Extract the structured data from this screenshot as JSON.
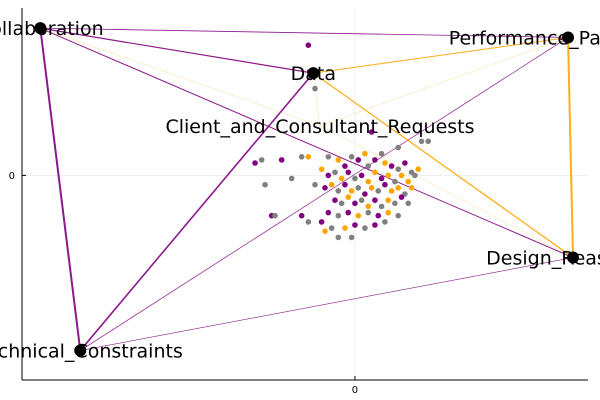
{
  "chart_data": {
    "type": "network-scatter",
    "title": "",
    "xlabel": "",
    "ylabel": "",
    "xlim": [
      -1.0,
      0.7
    ],
    "ylim": [
      -0.66,
      0.54
    ],
    "grid": true,
    "x_ticks": [
      {
        "value": 0,
        "label": "0"
      }
    ],
    "y_ticks": [
      {
        "value": 0,
        "label": "0"
      }
    ],
    "colors": {
      "purple": "#800080",
      "orange": "#ffa500",
      "gray": "#808080",
      "node": "#000000"
    },
    "nodes": [
      {
        "id": "collab",
        "label": "Collaboration",
        "x": -0.945,
        "y": 0.475
      },
      {
        "id": "perf",
        "label": "Performance_Parameters",
        "x": 0.64,
        "y": 0.445
      },
      {
        "id": "data",
        "label": "Data",
        "x": -0.125,
        "y": 0.33
      },
      {
        "id": "client",
        "label": "Client_and_Consultant_Requests",
        "x": -0.105,
        "y": 0.16
      },
      {
        "id": "design",
        "label": "Design_Reasoning",
        "x": 0.655,
        "y": -0.265
      },
      {
        "id": "tech",
        "label": "Technical_Constraints",
        "x": -0.825,
        "y": -0.565
      }
    ],
    "edges": [
      {
        "from": "collab",
        "to": "tech",
        "color": "purple",
        "width": 2.0
      },
      {
        "from": "collab",
        "to": "data",
        "color": "purple",
        "width": 1.2
      },
      {
        "from": "collab",
        "to": "design",
        "color": "purple",
        "width": 1.0
      },
      {
        "from": "collab",
        "to": "perf",
        "color": "purple",
        "width": 0.8
      },
      {
        "from": "tech",
        "to": "data",
        "color": "purple",
        "width": 1.6
      },
      {
        "from": "tech",
        "to": "design",
        "color": "purple",
        "width": 0.6
      },
      {
        "from": "tech",
        "to": "perf",
        "color": "purple",
        "width": 0.7
      },
      {
        "from": "data",
        "to": "perf",
        "color": "orange",
        "width": 1.0
      },
      {
        "from": "data",
        "to": "design",
        "color": "orange",
        "width": 1.3
      },
      {
        "from": "perf",
        "to": "design",
        "color": "orange",
        "width": 2.0
      },
      {
        "from": "collab",
        "to": "client",
        "color": "orange",
        "width": 0.4
      },
      {
        "from": "client",
        "to": "perf",
        "color": "orange",
        "width": 0.4
      },
      {
        "from": "client",
        "to": "design",
        "color": "orange",
        "width": 0.4
      },
      {
        "from": "data",
        "to": "client",
        "color": "orange",
        "width": 0.4
      }
    ],
    "points": [
      {
        "x": -0.14,
        "y": 0.42,
        "c": "purple"
      },
      {
        "x": -0.12,
        "y": 0.28,
        "c": "gray"
      },
      {
        "x": 0.05,
        "y": 0.14,
        "c": "purple"
      },
      {
        "x": 0.13,
        "y": 0.09,
        "c": "gray"
      },
      {
        "x": 0.2,
        "y": 0.11,
        "c": "gray"
      },
      {
        "x": 0.08,
        "y": 0.07,
        "c": "gray"
      },
      {
        "x": 0.22,
        "y": 0.11,
        "c": "gray"
      },
      {
        "x": -0.3,
        "y": 0.04,
        "c": "purple"
      },
      {
        "x": -0.28,
        "y": 0.05,
        "c": "gray"
      },
      {
        "x": -0.22,
        "y": 0.05,
        "c": "purple"
      },
      {
        "x": -0.16,
        "y": 0.06,
        "c": "gray"
      },
      {
        "x": -0.14,
        "y": 0.06,
        "c": "orange"
      },
      {
        "x": -0.08,
        "y": 0.06,
        "c": "gray"
      },
      {
        "x": -0.05,
        "y": 0.05,
        "c": "orange"
      },
      {
        "x": -0.03,
        "y": 0.03,
        "c": "purple"
      },
      {
        "x": -0.01,
        "y": 0.06,
        "c": "gray"
      },
      {
        "x": 0.01,
        "y": 0.05,
        "c": "purple"
      },
      {
        "x": 0.03,
        "y": 0.07,
        "c": "orange"
      },
      {
        "x": 0.04,
        "y": 0.03,
        "c": "gray"
      },
      {
        "x": 0.06,
        "y": 0.05,
        "c": "purple"
      },
      {
        "x": 0.09,
        "y": 0.04,
        "c": "orange"
      },
      {
        "x": 0.11,
        "y": 0.03,
        "c": "purple"
      },
      {
        "x": 0.13,
        "y": 0.02,
        "c": "gray"
      },
      {
        "x": 0.15,
        "y": 0.04,
        "c": "purple"
      },
      {
        "x": 0.17,
        "y": 0.01,
        "c": "gray"
      },
      {
        "x": 0.19,
        "y": 0.02,
        "c": "orange"
      },
      {
        "x": -0.1,
        "y": 0.02,
        "c": "orange"
      },
      {
        "x": -0.08,
        "y": 0.0,
        "c": "purple"
      },
      {
        "x": -0.06,
        "y": 0.01,
        "c": "gray"
      },
      {
        "x": -0.04,
        "y": -0.01,
        "c": "orange"
      },
      {
        "x": -0.02,
        "y": 0.01,
        "c": "purple"
      },
      {
        "x": 0.0,
        "y": -0.01,
        "c": "gray"
      },
      {
        "x": 0.02,
        "y": 0.0,
        "c": "purple"
      },
      {
        "x": 0.04,
        "y": -0.02,
        "c": "orange"
      },
      {
        "x": 0.06,
        "y": 0.01,
        "c": "orange"
      },
      {
        "x": 0.08,
        "y": -0.01,
        "c": "purple"
      },
      {
        "x": 0.1,
        "y": 0.0,
        "c": "orange"
      },
      {
        "x": 0.12,
        "y": -0.02,
        "c": "gray"
      },
      {
        "x": 0.14,
        "y": 0.0,
        "c": "orange"
      },
      {
        "x": 0.16,
        "y": -0.02,
        "c": "orange"
      },
      {
        "x": 0.18,
        "y": 0.0,
        "c": "gray"
      },
      {
        "x": -0.12,
        "y": -0.03,
        "c": "gray"
      },
      {
        "x": -0.09,
        "y": -0.04,
        "c": "purple"
      },
      {
        "x": -0.07,
        "y": -0.03,
        "c": "orange"
      },
      {
        "x": -0.05,
        "y": -0.05,
        "c": "gray"
      },
      {
        "x": -0.03,
        "y": -0.03,
        "c": "purple"
      },
      {
        "x": -0.01,
        "y": -0.05,
        "c": "orange"
      },
      {
        "x": 0.01,
        "y": -0.04,
        "c": "gray"
      },
      {
        "x": 0.03,
        "y": -0.06,
        "c": "purple"
      },
      {
        "x": 0.05,
        "y": -0.04,
        "c": "orange"
      },
      {
        "x": 0.07,
        "y": -0.05,
        "c": "gray"
      },
      {
        "x": 0.09,
        "y": -0.03,
        "c": "purple"
      },
      {
        "x": 0.11,
        "y": -0.05,
        "c": "orange"
      },
      {
        "x": 0.13,
        "y": -0.04,
        "c": "orange"
      },
      {
        "x": 0.15,
        "y": -0.06,
        "c": "gray"
      },
      {
        "x": 0.17,
        "y": -0.04,
        "c": "orange"
      },
      {
        "x": -0.27,
        "y": -0.03,
        "c": "gray"
      },
      {
        "x": -0.19,
        "y": -0.01,
        "c": "gray"
      },
      {
        "x": -0.06,
        "y": -0.08,
        "c": "purple"
      },
      {
        "x": -0.04,
        "y": -0.09,
        "c": "gray"
      },
      {
        "x": -0.02,
        "y": -0.07,
        "c": "orange"
      },
      {
        "x": 0.0,
        "y": -0.09,
        "c": "purple"
      },
      {
        "x": 0.02,
        "y": -0.08,
        "c": "gray"
      },
      {
        "x": 0.04,
        "y": -0.1,
        "c": "orange"
      },
      {
        "x": 0.06,
        "y": -0.08,
        "c": "purple"
      },
      {
        "x": 0.08,
        "y": -0.1,
        "c": "gray"
      },
      {
        "x": 0.1,
        "y": -0.08,
        "c": "orange"
      },
      {
        "x": 0.12,
        "y": -0.09,
        "c": "gray"
      },
      {
        "x": 0.14,
        "y": -0.07,
        "c": "purple"
      },
      {
        "x": 0.16,
        "y": -0.09,
        "c": "gray"
      },
      {
        "x": -0.08,
        "y": -0.12,
        "c": "purple"
      },
      {
        "x": -0.05,
        "y": -0.13,
        "c": "gray"
      },
      {
        "x": -0.02,
        "y": -0.12,
        "c": "purple"
      },
      {
        "x": 0.01,
        "y": -0.13,
        "c": "orange"
      },
      {
        "x": 0.04,
        "y": -0.12,
        "c": "gray"
      },
      {
        "x": 0.07,
        "y": -0.13,
        "c": "purple"
      },
      {
        "x": 0.1,
        "y": -0.12,
        "c": "orange"
      },
      {
        "x": 0.13,
        "y": -0.13,
        "c": "gray"
      },
      {
        "x": -0.25,
        "y": -0.13,
        "c": "purple"
      },
      {
        "x": -0.24,
        "y": -0.13,
        "c": "gray"
      },
      {
        "x": -0.14,
        "y": -0.15,
        "c": "gray"
      },
      {
        "x": -0.1,
        "y": -0.15,
        "c": "purple"
      },
      {
        "x": -0.07,
        "y": -0.17,
        "c": "gray"
      },
      {
        "x": -0.03,
        "y": -0.17,
        "c": "orange"
      },
      {
        "x": 0.0,
        "y": -0.16,
        "c": "purple"
      },
      {
        "x": 0.03,
        "y": -0.17,
        "c": "gray"
      },
      {
        "x": -0.09,
        "y": -0.18,
        "c": "orange"
      },
      {
        "x": 0.06,
        "y": -0.16,
        "c": "purple"
      },
      {
        "x": 0.09,
        "y": -0.15,
        "c": "gray"
      },
      {
        "x": -0.05,
        "y": -0.2,
        "c": "gray"
      },
      {
        "x": -0.01,
        "y": -0.2,
        "c": "gray"
      },
      {
        "x": -0.16,
        "y": -0.13,
        "c": "purple"
      }
    ]
  }
}
